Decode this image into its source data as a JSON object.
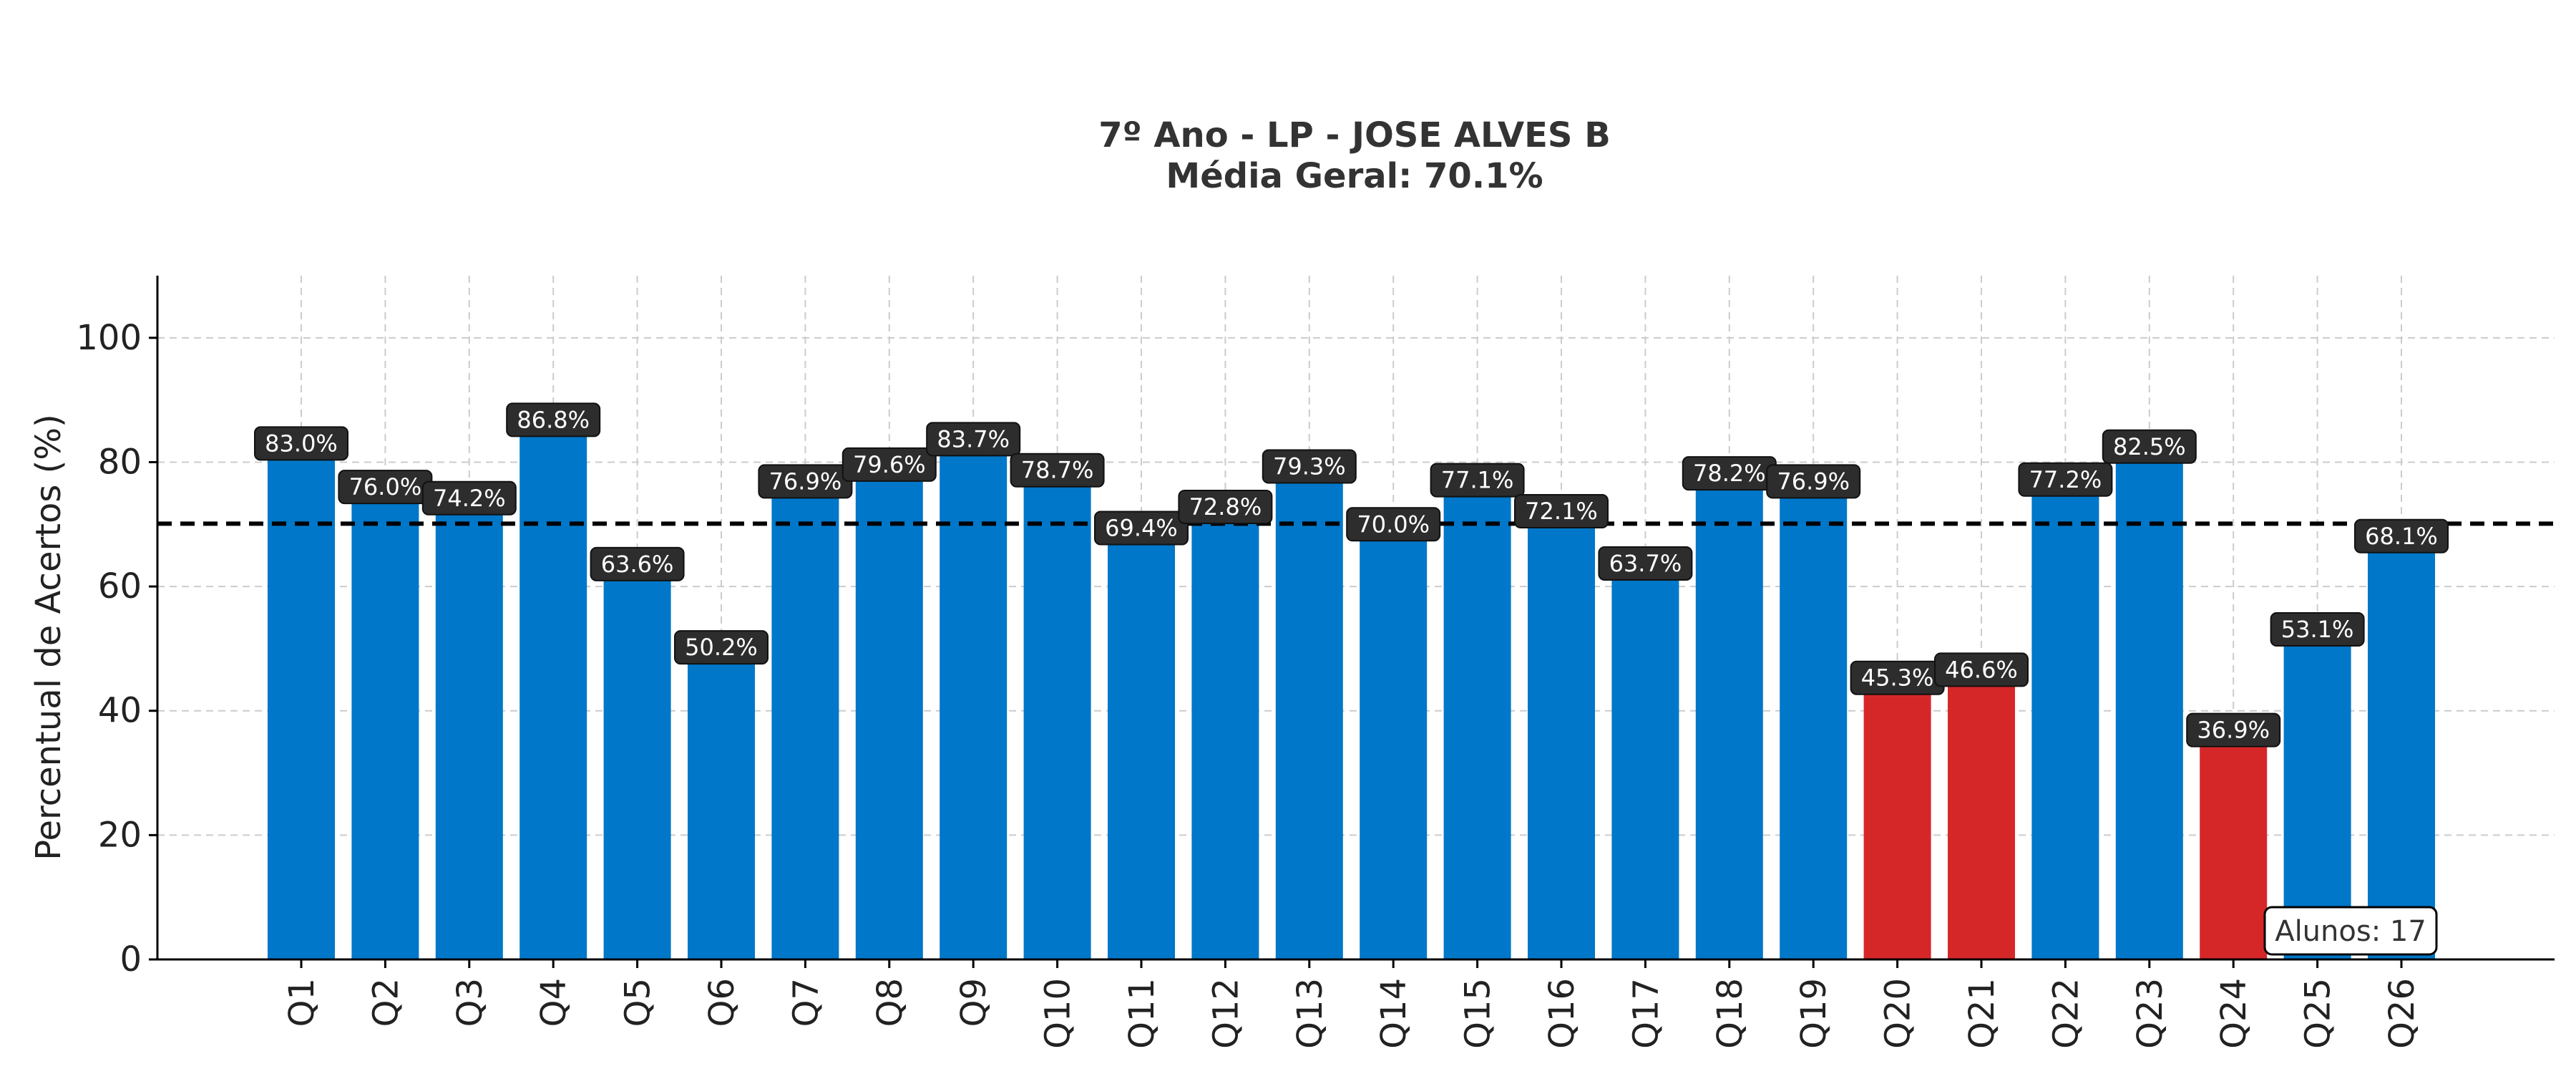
{
  "chart_data": {
    "type": "bar",
    "title_line1": "7º Ano - LP - JOSE ALVES B",
    "title_line2": "Média Geral: 70.1%",
    "xlabel": "",
    "ylabel": "Percentual de Acertos (%)",
    "ylim": [
      0,
      110
    ],
    "yticks": [
      0,
      20,
      40,
      60,
      80,
      100
    ],
    "grid": true,
    "reference_line": {
      "value": 70.1,
      "style": "dashed",
      "color": "#000000"
    },
    "categories": [
      "Q1",
      "Q2",
      "Q3",
      "Q4",
      "Q5",
      "Q6",
      "Q7",
      "Q8",
      "Q9",
      "Q10",
      "Q11",
      "Q12",
      "Q13",
      "Q14",
      "Q15",
      "Q16",
      "Q17",
      "Q18",
      "Q19",
      "Q20",
      "Q21",
      "Q22",
      "Q23",
      "Q24",
      "Q25",
      "Q26"
    ],
    "values": [
      83.0,
      76.0,
      74.2,
      86.8,
      63.6,
      50.2,
      76.9,
      79.6,
      83.7,
      78.7,
      69.4,
      72.8,
      79.3,
      70.0,
      77.1,
      72.1,
      63.7,
      78.2,
      76.9,
      45.3,
      46.6,
      77.2,
      82.5,
      36.9,
      53.1,
      68.1
    ],
    "data_labels": [
      "83.0%",
      "76.0%",
      "74.2%",
      "86.8%",
      "63.6%",
      "50.2%",
      "76.9%",
      "79.6%",
      "83.7%",
      "78.7%",
      "69.4%",
      "72.8%",
      "79.3%",
      "70.0%",
      "77.1%",
      "72.1%",
      "63.7%",
      "78.2%",
      "76.9%",
      "45.3%",
      "46.6%",
      "77.2%",
      "82.5%",
      "36.9%",
      "53.1%",
      "68.1%"
    ],
    "highlight_threshold": 50,
    "colors": {
      "normal": "#0077C8",
      "low": "#D62728",
      "label_bg": "#2D2D2D",
      "grid": "#cccccc"
    },
    "annotation": "Alunos: 17"
  }
}
